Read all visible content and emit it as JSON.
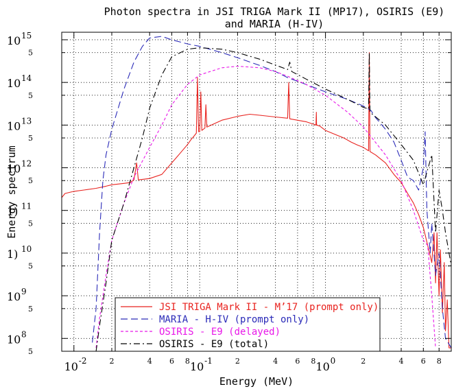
{
  "chart_data": {
    "type": "line",
    "title_lines": [
      "Photon spectra in JSI TRIGA Mark II (MP17), OSIRIS (E9)",
      "and MARIA (H-IV)"
    ],
    "xlabel": "Energy (MeV)",
    "ylabel": "Energy spectrum",
    "xscale": "log",
    "yscale": "log",
    "xlim": [
      0.008,
      10
    ],
    "ylim": [
      50000000,
      1500000000000000
    ],
    "grid": true,
    "legend_position": "bottom-center",
    "x_major_ticks": [
      {
        "base": "10",
        "exp": "-2",
        "value": 0.01
      },
      {
        "base": "10",
        "exp": "-1",
        "value": 0.1
      },
      {
        "base": "10",
        "exp": "0",
        "value": 1
      }
    ],
    "x_minor_ticks": [
      {
        "label": "2",
        "value": 0.02
      },
      {
        "label": "4",
        "value": 0.04
      },
      {
        "label": "6",
        "value": 0.06
      },
      {
        "label": "8",
        "value": 0.08
      },
      {
        "label": "2",
        "value": 0.2
      },
      {
        "label": "4",
        "value": 0.4
      },
      {
        "label": "6",
        "value": 0.6
      },
      {
        "label": "8",
        "value": 0.8
      },
      {
        "label": "2",
        "value": 2
      },
      {
        "label": "4",
        "value": 4
      },
      {
        "label": "6",
        "value": 6
      },
      {
        "label": "8",
        "value": 8
      }
    ],
    "y_major_ticks": [
      {
        "base": "10",
        "exp": "15",
        "value": 1000000000000000.0
      },
      {
        "base": "10",
        "exp": "14",
        "value": 100000000000000.0
      },
      {
        "base": "10",
        "exp": "13",
        "value": 10000000000000.0
      },
      {
        "base": "10",
        "exp": "12",
        "value": 1000000000000.0
      },
      {
        "base": "1)",
        "exp": "11",
        "value": 100000000000.0
      },
      {
        "base": "1)",
        "exp": "10",
        "value": 10000000000.0
      },
      {
        "base": "10",
        "exp": "9",
        "value": 1000000000.0
      },
      {
        "base": "10",
        "exp": "8",
        "value": 100000000.0
      }
    ],
    "y_minor_ticks": [
      {
        "label": "5",
        "value": 500000000000000.0
      },
      {
        "label": "5",
        "value": 50000000000000.0
      },
      {
        "label": "5",
        "value": 5000000000000.0
      },
      {
        "label": "5",
        "value": 500000000000.0
      },
      {
        "label": "5",
        "value": 50000000000.0
      },
      {
        "label": "5",
        "value": 5000000000.0
      },
      {
        "label": "5",
        "value": 500000000.0
      },
      {
        "label": "5",
        "value": 50000000.0
      }
    ],
    "series": [
      {
        "name": "JSI TRIGA Mark II - M’17 (prompt only)",
        "color": "#e8221e",
        "dash": "solid",
        "points": [
          [
            0.008,
            200000000000.0
          ],
          [
            0.0085,
            250000000000.0
          ],
          [
            0.01,
            280000000000.0
          ],
          [
            0.012,
            300000000000.0
          ],
          [
            0.015,
            330000000000.0
          ],
          [
            0.018,
            370000000000.0
          ],
          [
            0.02,
            400000000000.0
          ],
          [
            0.025,
            430000000000.0
          ],
          [
            0.028,
            450000000000.0
          ],
          [
            0.03,
            520000000000.0
          ],
          [
            0.0315,
            1300000000000.0
          ],
          [
            0.0325,
            520000000000.0
          ],
          [
            0.04,
            560000000000.0
          ],
          [
            0.05,
            700000000000.0
          ],
          [
            0.06,
            1300000000000.0
          ],
          [
            0.07,
            2200000000000.0
          ],
          [
            0.08,
            3500000000000.0
          ],
          [
            0.085,
            4500000000000.0
          ],
          [
            0.09,
            5500000000000.0
          ],
          [
            0.094,
            6500000000000.0
          ],
          [
            0.096,
            130000000000000.0
          ],
          [
            0.098,
            7000000000000.0
          ],
          [
            0.1,
            7000000000000.0
          ],
          [
            0.102,
            60000000000000.0
          ],
          [
            0.104,
            7500000000000.0
          ],
          [
            0.11,
            8500000000000.0
          ],
          [
            0.112,
            30000000000000.0
          ],
          [
            0.114,
            9000000000000.0
          ],
          [
            0.15,
            13000000000000.0
          ],
          [
            0.2,
            16000000000000.0
          ],
          [
            0.25,
            18000000000000.0
          ],
          [
            0.3,
            17000000000000.0
          ],
          [
            0.4,
            15500000000000.0
          ],
          [
            0.5,
            14500000000000.0
          ],
          [
            0.51,
            100000000000000.0
          ],
          [
            0.52,
            14000000000000.0
          ],
          [
            0.7,
            12000000000000.0
          ],
          [
            0.8,
            10500000000000.0
          ],
          [
            0.84,
            10000000000000.0
          ],
          [
            0.846,
            20000000000000.0
          ],
          [
            0.85,
            10000000000000.0
          ],
          [
            0.9,
            9500000000000.0
          ],
          [
            1.0,
            7500000000000.0
          ],
          [
            1.2,
            6000000000000.0
          ],
          [
            1.4,
            5000000000000.0
          ],
          [
            1.6,
            4000000000000.0
          ],
          [
            1.8,
            3400000000000.0
          ],
          [
            2.0,
            3000000000000.0
          ],
          [
            2.2,
            2500000000000.0
          ],
          [
            2.23,
            500000000000000.0
          ],
          [
            2.26,
            2400000000000.0
          ],
          [
            2.5,
            2000000000000.0
          ],
          [
            3.0,
            1300000000000.0
          ],
          [
            3.5,
            700000000000.0
          ],
          [
            4.0,
            450000000000.0
          ],
          [
            4.5,
            250000000000.0
          ],
          [
            5.0,
            150000000000.0
          ],
          [
            5.5,
            80000000000.0
          ],
          [
            6.0,
            40000000000.0
          ],
          [
            6.5,
            15000000000.0
          ],
          [
            7.0,
            6000000000.0
          ],
          [
            7.3,
            30000000000.0
          ],
          [
            7.5,
            2000000000.0
          ],
          [
            7.7,
            30000000000.0
          ],
          [
            8.0,
            1000000000.0
          ],
          [
            8.2,
            12000000000.0
          ],
          [
            8.5,
            400000000.0
          ],
          [
            8.8,
            6000000000.0
          ],
          [
            9.0,
            150000000.0
          ],
          [
            9.3,
            800000000.0
          ],
          [
            9.6,
            60000000.0
          ],
          [
            10.0,
            60000000.0
          ]
        ]
      },
      {
        "name": "MARIA - H-IV (prompt only)",
        "color": "#2a2ab8",
        "dash": "long",
        "points": [
          [
            0.014,
            80000000.0
          ],
          [
            0.015,
            500000000.0
          ],
          [
            0.016,
            30000000000.0
          ],
          [
            0.017,
            500000000000.0
          ],
          [
            0.018,
            2000000000000.0
          ],
          [
            0.02,
            8000000000000.0
          ],
          [
            0.025,
            70000000000000.0
          ],
          [
            0.03,
            300000000000000.0
          ],
          [
            0.035,
            700000000000000.0
          ],
          [
            0.04,
            1100000000000000.0
          ],
          [
            0.05,
            1200000000000000.0
          ],
          [
            0.06,
            1000000000000000.0
          ],
          [
            0.08,
            800000000000000.0
          ],
          [
            0.1,
            700000000000000.0
          ],
          [
            0.15,
            500000000000000.0
          ],
          [
            0.2,
            380000000000000.0
          ],
          [
            0.3,
            250000000000000.0
          ],
          [
            0.4,
            180000000000000.0
          ],
          [
            0.5,
            130000000000000.0
          ],
          [
            0.7,
            90000000000000.0
          ],
          [
            1.0,
            60000000000000.0
          ],
          [
            1.5,
            40000000000000.0
          ],
          [
            2.0,
            28000000000000.0
          ],
          [
            2.3,
            22000000000000.0
          ],
          [
            2.5,
            15000000000000.0
          ],
          [
            3.0,
            8000000000000.0
          ],
          [
            3.5,
            4000000000000.0
          ],
          [
            4.0,
            1500000000000.0
          ],
          [
            4.5,
            600000000000.0
          ],
          [
            5.0,
            500000000000.0
          ],
          [
            5.5,
            300000000000.0
          ],
          [
            6.0,
            1000000000000.0
          ],
          [
            6.2,
            7000000000000.0
          ],
          [
            6.4,
            100000000000.0
          ],
          [
            6.8,
            10000000000.0
          ],
          [
            7.0,
            50000000000.0
          ],
          [
            7.5,
            3000000000.0
          ],
          [
            8.0,
            10000000000.0
          ],
          [
            8.5,
            500000000.0
          ],
          [
            9.0,
            100000000.0
          ],
          [
            10.0,
            60000000.0
          ]
        ]
      },
      {
        "name": "OSIRIS - E9 (delayed)",
        "color": "#e817e8",
        "dash": "short",
        "points": [
          [
            0.015,
            60000000.0
          ],
          [
            0.016,
            300000000.0
          ],
          [
            0.018,
            3000000000.0
          ],
          [
            0.02,
            20000000000.0
          ],
          [
            0.025,
            150000000000.0
          ],
          [
            0.03,
            600000000000.0
          ],
          [
            0.04,
            3000000000000.0
          ],
          [
            0.05,
            10000000000000.0
          ],
          [
            0.06,
            30000000000000.0
          ],
          [
            0.08,
            90000000000000.0
          ],
          [
            0.1,
            150000000000000.0
          ],
          [
            0.15,
            220000000000000.0
          ],
          [
            0.2,
            240000000000000.0
          ],
          [
            0.3,
            220000000000000.0
          ],
          [
            0.4,
            180000000000000.0
          ],
          [
            0.5,
            140000000000000.0
          ],
          [
            0.7,
            90000000000000.0
          ],
          [
            1.0,
            50000000000000.0
          ],
          [
            1.5,
            20000000000000.0
          ],
          [
            2.0,
            9000000000000.0
          ],
          [
            3.0,
            2000000000000.0
          ],
          [
            4.0,
            500000000000.0
          ],
          [
            5.0,
            100000000000.0
          ],
          [
            6.0,
            20000000000.0
          ],
          [
            6.5,
            15000000000.0
          ],
          [
            7.0,
            1000000000.0
          ],
          [
            7.5,
            60000000.0
          ]
        ]
      },
      {
        "name": "OSIRIS - E9 (total)",
        "color": "#000000",
        "dash": "dashdot",
        "points": [
          [
            0.015,
            50000000.0
          ],
          [
            0.016,
            200000000.0
          ],
          [
            0.018,
            2000000000.0
          ],
          [
            0.02,
            20000000000.0
          ],
          [
            0.025,
            150000000000.0
          ],
          [
            0.03,
            1000000000000.0
          ],
          [
            0.035,
            5000000000000.0
          ],
          [
            0.04,
            25000000000000.0
          ],
          [
            0.05,
            150000000000000.0
          ],
          [
            0.06,
            400000000000000.0
          ],
          [
            0.08,
            600000000000000.0
          ],
          [
            0.1,
            650000000000000.0
          ],
          [
            0.15,
            600000000000000.0
          ],
          [
            0.2,
            500000000000000.0
          ],
          [
            0.3,
            350000000000000.0
          ],
          [
            0.5,
            200000000000000.0
          ],
          [
            0.52,
            300000000000000.0
          ],
          [
            0.54,
            180000000000000.0
          ],
          [
            0.7,
            120000000000000.0
          ],
          [
            1.0,
            70000000000000.0
          ],
          [
            1.5,
            40000000000000.0
          ],
          [
            2.0,
            26000000000000.0
          ],
          [
            2.2,
            24000000000000.0
          ],
          [
            2.23,
            500000000000000.0
          ],
          [
            2.26,
            20000000000000.0
          ],
          [
            3.0,
            10000000000000.0
          ],
          [
            4.0,
            3500000000000.0
          ],
          [
            5.0,
            1500000000000.0
          ],
          [
            6.0,
            400000000000.0
          ],
          [
            7.0,
            2000000000000.0
          ],
          [
            7.5,
            30000000000.0
          ],
          [
            8.0,
            300000000000.0
          ],
          [
            8.5,
            100000000000.0
          ],
          [
            9.0,
            30000000000.0
          ],
          [
            10.0,
            5000000000.0
          ]
        ]
      }
    ]
  }
}
